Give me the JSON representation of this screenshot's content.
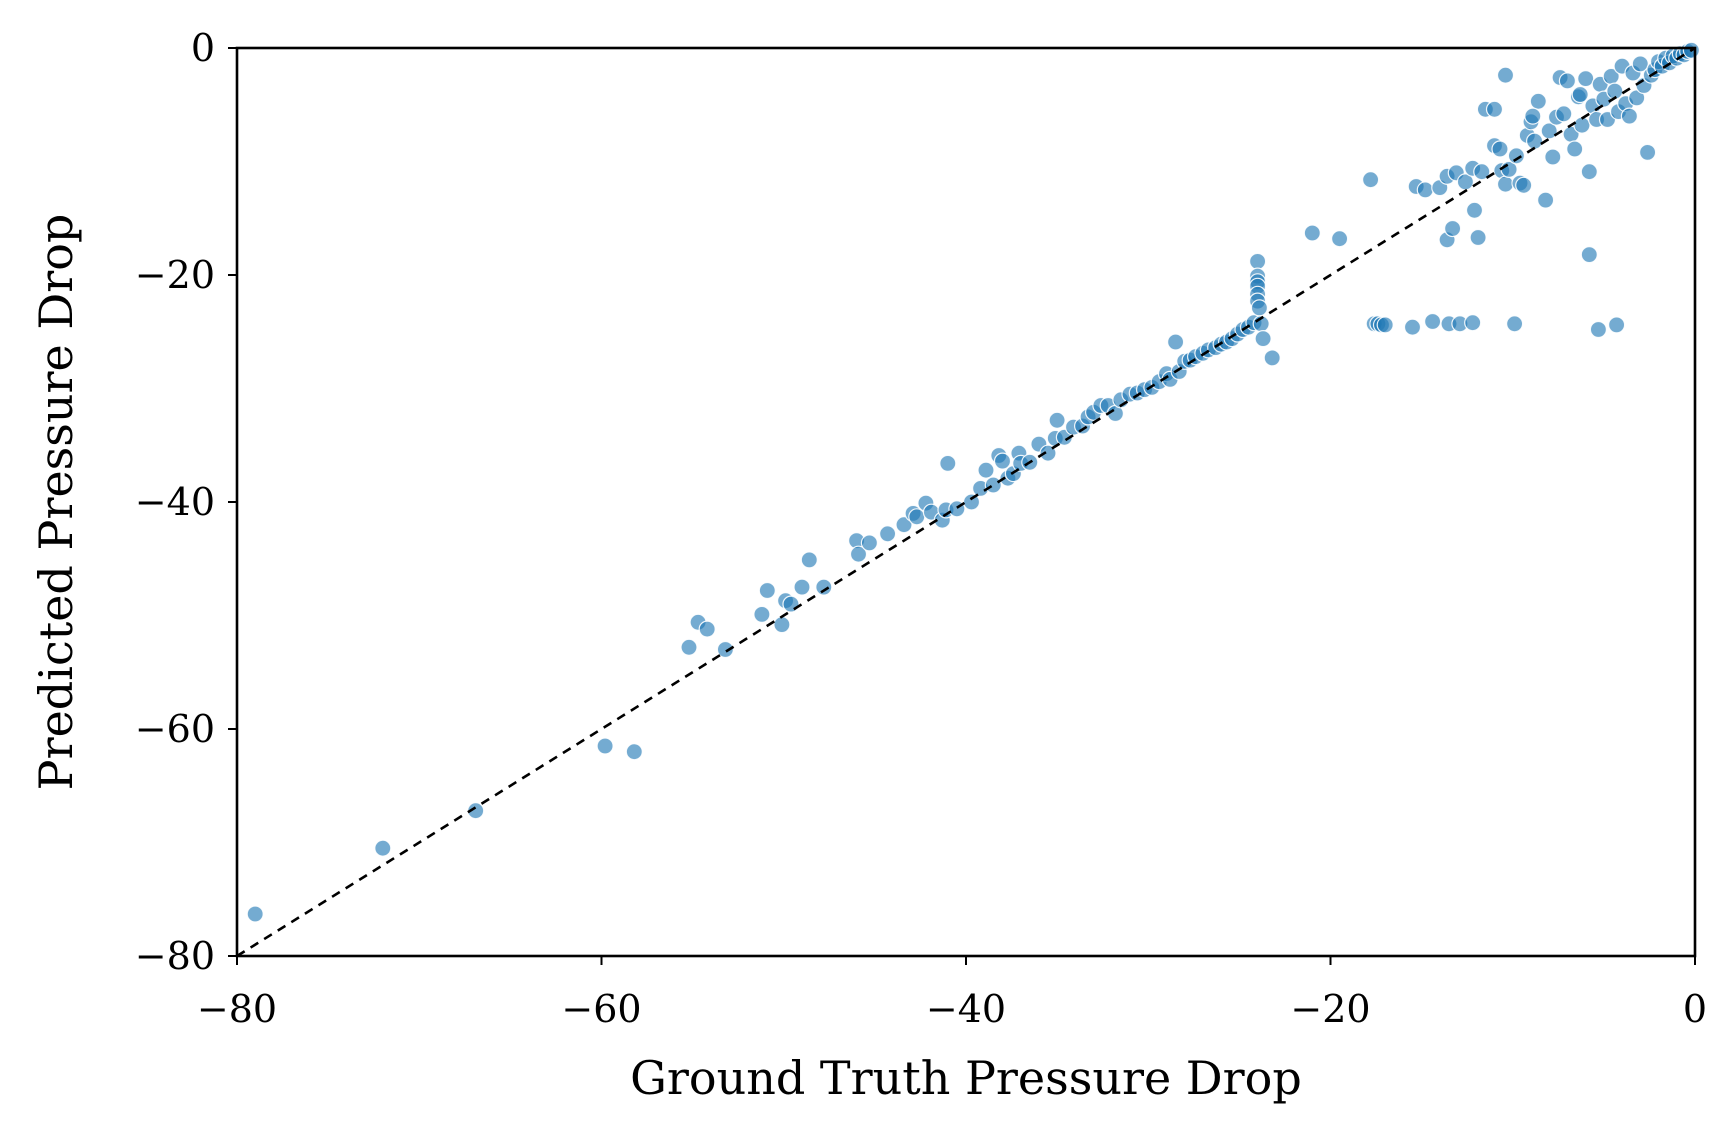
{
  "chart_data": {
    "type": "scatter",
    "title": "",
    "xlabel": "Ground Truth Pressure Drop",
    "ylabel": "Predicted Pressure Drop",
    "xlim": [
      -80,
      0
    ],
    "ylim": [
      -80,
      0
    ],
    "x_ticks": [
      -80,
      -60,
      -40,
      -20,
      0
    ],
    "y_ticks": [
      -80,
      -60,
      -40,
      -20,
      0
    ],
    "x_tick_labels": [
      "−80",
      "−60",
      "−40",
      "−20",
      "0"
    ],
    "y_tick_labels": [
      "−80",
      "−60",
      "−40",
      "−20",
      "0"
    ],
    "grid": false,
    "point_color": "#1f77b4",
    "reference_line": {
      "style": "dashed",
      "color": "#000000",
      "from": [
        -80,
        -80
      ],
      "to": [
        0,
        0
      ]
    },
    "points": [
      [
        -79,
        -76.3
      ],
      [
        -72.0,
        -70.5
      ],
      [
        -66.9,
        -67.2
      ],
      [
        -59.8,
        -61.5
      ],
      [
        -58.2,
        -62.0
      ],
      [
        -55.2,
        -52.8
      ],
      [
        -54.7,
        -50.6
      ],
      [
        -54.2,
        -51.2
      ],
      [
        -53.2,
        -53.0
      ],
      [
        -51.2,
        -49.9
      ],
      [
        -50.9,
        -47.8
      ],
      [
        -50.1,
        -50.8
      ],
      [
        -49.9,
        -48.7
      ],
      [
        -49.6,
        -49.0
      ],
      [
        -49.0,
        -47.5
      ],
      [
        -48.6,
        -45.1
      ],
      [
        -47.8,
        -47.5
      ],
      [
        -46.0,
        -43.4
      ],
      [
        -45.9,
        -44.6
      ],
      [
        -45.3,
        -43.6
      ],
      [
        -44.3,
        -42.8
      ],
      [
        -43.4,
        -42.0
      ],
      [
        -42.9,
        -41.0
      ],
      [
        -42.7,
        -41.3
      ],
      [
        -42.2,
        -40.1
      ],
      [
        -41.9,
        -40.9
      ],
      [
        -41.3,
        -41.6
      ],
      [
        -41.1,
        -40.7
      ],
      [
        -41.0,
        -36.6
      ],
      [
        -40.5,
        -40.6
      ],
      [
        -39.7,
        -40.0
      ],
      [
        -39.2,
        -38.8
      ],
      [
        -38.9,
        -37.2
      ],
      [
        -38.5,
        -38.5
      ],
      [
        -38.2,
        -35.9
      ],
      [
        -38.0,
        -36.4
      ],
      [
        -37.7,
        -37.9
      ],
      [
        -37.4,
        -37.5
      ],
      [
        -37.1,
        -35.7
      ],
      [
        -37.0,
        -36.6
      ],
      [
        -36.5,
        -36.5
      ],
      [
        -36.0,
        -34.9
      ],
      [
        -35.5,
        -35.7
      ],
      [
        -35.1,
        -34.4
      ],
      [
        -35.0,
        -32.8
      ],
      [
        -34.6,
        -34.3
      ],
      [
        -34.1,
        -33.4
      ],
      [
        -33.6,
        -33.3
      ],
      [
        -33.3,
        -32.5
      ],
      [
        -33.0,
        -32.1
      ],
      [
        -32.6,
        -31.5
      ],
      [
        -32.2,
        -31.5
      ],
      [
        -31.8,
        -32.2
      ],
      [
        -31.5,
        -31.0
      ],
      [
        -31.0,
        -30.5
      ],
      [
        -30.6,
        -30.4
      ],
      [
        -30.2,
        -30.1
      ],
      [
        -29.8,
        -29.9
      ],
      [
        -29.4,
        -29.4
      ],
      [
        -29.0,
        -28.7
      ],
      [
        -28.8,
        -29.2
      ],
      [
        -28.5,
        -25.9
      ],
      [
        -28.3,
        -28.5
      ],
      [
        -28.0,
        -27.6
      ],
      [
        -27.7,
        -27.5
      ],
      [
        -27.4,
        -27.2
      ],
      [
        -27.0,
        -26.9
      ],
      [
        -26.7,
        -26.6
      ],
      [
        -26.3,
        -26.4
      ],
      [
        -26.0,
        -26.1
      ],
      [
        -25.7,
        -25.9
      ],
      [
        -25.4,
        -25.6
      ],
      [
        -25.1,
        -25.2
      ],
      [
        -24.8,
        -24.8
      ],
      [
        -24.5,
        -24.6
      ],
      [
        -24.2,
        -24.2
      ],
      [
        -24.0,
        -18.8
      ],
      [
        -24.0,
        -20.1
      ],
      [
        -24.0,
        -20.6
      ],
      [
        -24.0,
        -21.0
      ],
      [
        -24.0,
        -21.7
      ],
      [
        -24.0,
        -22.3
      ],
      [
        -23.9,
        -22.9
      ],
      [
        -23.8,
        -24.3
      ],
      [
        -23.7,
        -25.6
      ],
      [
        -23.2,
        -27.3
      ],
      [
        -21.0,
        -16.3
      ],
      [
        -19.5,
        -16.8
      ],
      [
        -17.8,
        -11.6
      ],
      [
        -17.6,
        -24.3
      ],
      [
        -17.4,
        -24.3
      ],
      [
        -17.2,
        -24.4
      ],
      [
        -17.0,
        -24.4
      ],
      [
        -15.5,
        -24.6
      ],
      [
        -14.4,
        -24.1
      ],
      [
        -13.5,
        -24.3
      ],
      [
        -12.9,
        -24.3
      ],
      [
        -12.2,
        -24.2
      ],
      [
        -9.9,
        -24.3
      ],
      [
        -5.3,
        -24.8
      ],
      [
        -4.3,
        -24.4
      ],
      [
        -5.8,
        -18.2
      ],
      [
        -13.6,
        -16.9
      ],
      [
        -13.3,
        -15.9
      ],
      [
        -11.9,
        -16.7
      ],
      [
        -12.1,
        -14.3
      ],
      [
        -15.3,
        -12.2
      ],
      [
        -14.8,
        -12.5
      ],
      [
        -14.0,
        -12.3
      ],
      [
        -13.6,
        -11.3
      ],
      [
        -13.1,
        -11.0
      ],
      [
        -12.6,
        -11.8
      ],
      [
        -12.2,
        -10.6
      ],
      [
        -11.7,
        -10.9
      ],
      [
        -11.0,
        -8.6
      ],
      [
        -10.7,
        -8.9
      ],
      [
        -10.6,
        -10.8
      ],
      [
        -10.4,
        -12.0
      ],
      [
        -10.2,
        -10.7
      ],
      [
        -9.8,
        -9.5
      ],
      [
        -9.6,
        -11.9
      ],
      [
        -9.4,
        -12.1
      ],
      [
        -9.2,
        -7.7
      ],
      [
        -9.0,
        -6.5
      ],
      [
        -8.8,
        -8.2
      ],
      [
        -8.6,
        -4.7
      ],
      [
        -8.2,
        -13.4
      ],
      [
        -8.0,
        -7.3
      ],
      [
        -7.8,
        -9.6
      ],
      [
        -7.6,
        -6.1
      ],
      [
        -7.4,
        -2.6
      ],
      [
        -7.2,
        -5.8
      ],
      [
        -7.0,
        -2.9
      ],
      [
        -6.8,
        -7.6
      ],
      [
        -6.6,
        -8.9
      ],
      [
        -6.4,
        -4.3
      ],
      [
        -6.2,
        -6.8
      ],
      [
        -6.0,
        -2.7
      ],
      [
        -5.8,
        -10.9
      ],
      [
        -5.6,
        -5.1
      ],
      [
        -5.4,
        -6.3
      ],
      [
        -5.2,
        -3.2
      ],
      [
        -5.0,
        -4.5
      ],
      [
        -4.8,
        -6.3
      ],
      [
        -4.6,
        -2.5
      ],
      [
        -4.4,
        -3.8
      ],
      [
        -4.2,
        -5.6
      ],
      [
        -4.0,
        -1.6
      ],
      [
        -3.8,
        -4.9
      ],
      [
        -3.6,
        -6.0
      ],
      [
        -3.4,
        -2.2
      ],
      [
        -3.2,
        -4.4
      ],
      [
        -3.0,
        -1.4
      ],
      [
        -2.8,
        -3.3
      ],
      [
        -2.6,
        -9.2
      ],
      [
        -2.4,
        -2.4
      ],
      [
        -2.2,
        -1.9
      ],
      [
        -2.0,
        -1.2
      ],
      [
        -1.8,
        -1.6
      ],
      [
        -1.6,
        -0.9
      ],
      [
        -1.4,
        -1.3
      ],
      [
        -1.2,
        -0.7
      ],
      [
        -1.0,
        -0.9
      ],
      [
        -0.8,
        -0.5
      ],
      [
        -0.6,
        -0.6
      ],
      [
        -0.4,
        -0.3
      ],
      [
        -0.2,
        -0.2
      ],
      [
        -10.4,
        -2.4
      ],
      [
        -11.5,
        -5.4
      ],
      [
        -11.0,
        -5.4
      ],
      [
        -8.9,
        -6.0
      ],
      [
        -6.3,
        -4.1
      ]
    ]
  }
}
